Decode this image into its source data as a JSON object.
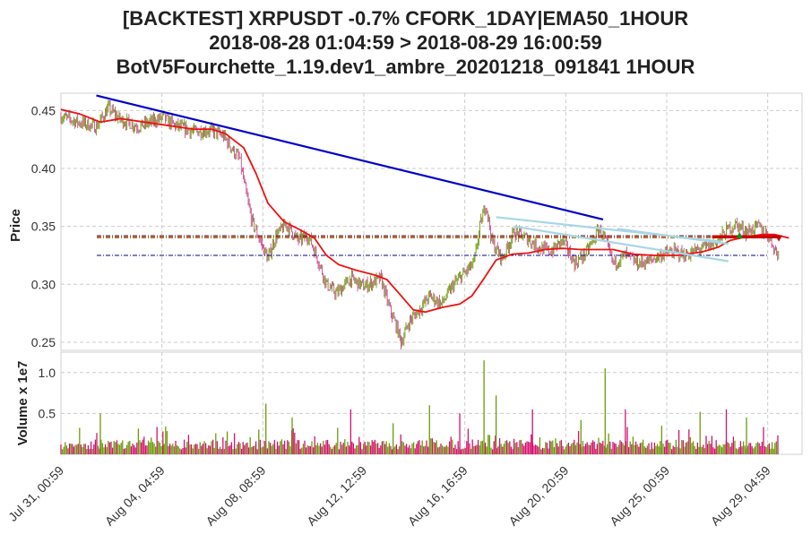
{
  "title": {
    "line1": "[BACKTEST] XRPUSDT -0.7% CFORK_1DAY|EMA50_1HOUR",
    "line2": "2018-08-28 01:04:59 > 2018-08-29 16:00:59",
    "line3": "BotV5Fourchette_1.19.dev1_ambre_20201218_091841 1HOUR"
  },
  "colors": {
    "candle": "#c84a8a",
    "ema": "#ee1111",
    "trend": "#0000cc",
    "channel": "#a9d6e5",
    "volume_up": "#6b9a08",
    "volume_down": "#d5126e",
    "level_dark": "#3b3b3b",
    "level_olive": "#8d8d1c",
    "level_red": "#cc0000",
    "level_blue": "#00008b",
    "grid": "#cccccc"
  },
  "chart_data": [
    {
      "type": "line",
      "panel": "price",
      "ylabel": "Price",
      "ylim": [
        0.243,
        0.465
      ],
      "yticks": [
        0.25,
        0.3,
        0.35,
        0.4,
        0.45
      ],
      "ytick_labels": [
        "0.25",
        "0.30",
        "0.35",
        "0.40",
        "0.45"
      ],
      "x_start": "2018-07-31 00:59",
      "x_end": "2018-08-30 15:00",
      "xticks": [
        "2018-07-31 00:59",
        "2018-08-04 04:59",
        "2018-08-08 08:59",
        "2018-08-12 12:59",
        "2018-08-16 16:59",
        "2018-08-20 20:59",
        "2018-08-25 00:59",
        "2018-08-29 04:59"
      ],
      "xtick_labels": [
        "Jul 31, 00:59",
        "Aug 04, 04:59",
        "Aug 08, 08:59",
        "Aug 12, 12:59",
        "Aug 16, 16:59",
        "Aug 20, 20:59",
        "Aug 25, 00:59",
        "Aug 29, 04:59"
      ],
      "grid": true,
      "series": [
        {
          "kind": "close",
          "points": [
            [
              "2018-07-31 00:59",
              0.445
            ],
            [
              "2018-07-31 18:00",
              0.44
            ],
            [
              "2018-08-01 12:00",
              0.436
            ],
            [
              "2018-08-02 00:00",
              0.452
            ],
            [
              "2018-08-02 12:00",
              0.442
            ],
            [
              "2018-08-03 06:00",
              0.436
            ],
            [
              "2018-08-03 18:00",
              0.44
            ],
            [
              "2018-08-04 06:00",
              0.444
            ],
            [
              "2018-08-04 18:00",
              0.437
            ],
            [
              "2018-08-05 12:00",
              0.432
            ],
            [
              "2018-08-06 06:00",
              0.433
            ],
            [
              "2018-08-06 18:00",
              0.428
            ],
            [
              "2018-08-07 04:00",
              0.415
            ],
            [
              "2018-08-07 10:00",
              0.408
            ],
            [
              "2018-08-07 16:00",
              0.38
            ],
            [
              "2018-08-07 22:00",
              0.355
            ],
            [
              "2018-08-08 06:00",
              0.338
            ],
            [
              "2018-08-08 14:00",
              0.322
            ],
            [
              "2018-08-08 22:00",
              0.342
            ],
            [
              "2018-08-09 08:00",
              0.352
            ],
            [
              "2018-08-09 20:00",
              0.338
            ],
            [
              "2018-08-10 06:00",
              0.342
            ],
            [
              "2018-08-10 14:00",
              0.325
            ],
            [
              "2018-08-11 00:00",
              0.3
            ],
            [
              "2018-08-11 10:00",
              0.292
            ],
            [
              "2018-08-12 00:00",
              0.305
            ],
            [
              "2018-08-12 12:59",
              0.298
            ],
            [
              "2018-08-13 06:00",
              0.305
            ],
            [
              "2018-08-13 14:00",
              0.28
            ],
            [
              "2018-08-13 22:00",
              0.262
            ],
            [
              "2018-08-14 02:00",
              0.25
            ],
            [
              "2018-08-14 10:00",
              0.268
            ],
            [
              "2018-08-14 20:00",
              0.278
            ],
            [
              "2018-08-15 06:00",
              0.29
            ],
            [
              "2018-08-15 18:00",
              0.283
            ],
            [
              "2018-08-16 06:00",
              0.3
            ],
            [
              "2018-08-16 16:59",
              0.31
            ],
            [
              "2018-08-17 02:00",
              0.318
            ],
            [
              "2018-08-17 08:00",
              0.35
            ],
            [
              "2018-08-17 14:00",
              0.37
            ],
            [
              "2018-08-17 20:00",
              0.336
            ],
            [
              "2018-08-18 06:00",
              0.322
            ],
            [
              "2018-08-18 18:00",
              0.345
            ],
            [
              "2018-08-19 06:00",
              0.34
            ],
            [
              "2018-08-19 18:00",
              0.332
            ],
            [
              "2018-08-20 06:00",
              0.328
            ],
            [
              "2018-08-20 18:00",
              0.338
            ],
            [
              "2018-08-21 06:00",
              0.318
            ],
            [
              "2018-08-21 18:00",
              0.328
            ],
            [
              "2018-08-22 06:00",
              0.348
            ],
            [
              "2018-08-22 12:00",
              0.338
            ],
            [
              "2018-08-22 20:00",
              0.318
            ],
            [
              "2018-08-23 08:00",
              0.325
            ],
            [
              "2018-08-23 20:00",
              0.318
            ],
            [
              "2018-08-24 08:00",
              0.32
            ],
            [
              "2018-08-24 20:00",
              0.326
            ],
            [
              "2018-08-25 08:00",
              0.328
            ],
            [
              "2018-08-25 20:00",
              0.325
            ],
            [
              "2018-08-26 08:00",
              0.33
            ],
            [
              "2018-08-26 20:00",
              0.333
            ],
            [
              "2018-08-27 06:00",
              0.34
            ],
            [
              "2018-08-27 14:00",
              0.348
            ],
            [
              "2018-08-27 22:00",
              0.352
            ],
            [
              "2018-08-28 08:00",
              0.345
            ],
            [
              "2018-08-28 20:00",
              0.35
            ],
            [
              "2018-08-29 06:00",
              0.342
            ],
            [
              "2018-08-29 12:00",
              0.33
            ],
            [
              "2018-08-29 16:00",
              0.325
            ]
          ]
        },
        {
          "kind": "ema",
          "points": [
            [
              "2018-07-31 00:59",
              0.451
            ],
            [
              "2018-07-31 20:00",
              0.447
            ],
            [
              "2018-08-01 16:00",
              0.44
            ],
            [
              "2018-08-02 12:00",
              0.443
            ],
            [
              "2018-08-03 12:00",
              0.44
            ],
            [
              "2018-08-04 12:00",
              0.437
            ],
            [
              "2018-08-05 12:00",
              0.434
            ],
            [
              "2018-08-06 06:00",
              0.434
            ],
            [
              "2018-08-06 20:00",
              0.43
            ],
            [
              "2018-08-07 14:00",
              0.418
            ],
            [
              "2018-08-08 02:00",
              0.396
            ],
            [
              "2018-08-08 14:00",
              0.37
            ],
            [
              "2018-08-09 06:00",
              0.354
            ],
            [
              "2018-08-09 22:00",
              0.347
            ],
            [
              "2018-08-10 12:00",
              0.34
            ],
            [
              "2018-08-11 00:00",
              0.325
            ],
            [
              "2018-08-11 12:00",
              0.317
            ],
            [
              "2018-08-12 06:00",
              0.312
            ],
            [
              "2018-08-13 00:00",
              0.308
            ],
            [
              "2018-08-13 12:00",
              0.304
            ],
            [
              "2018-08-14 00:00",
              0.292
            ],
            [
              "2018-08-14 14:00",
              0.278
            ],
            [
              "2018-08-15 02:00",
              0.276
            ],
            [
              "2018-08-15 18:00",
              0.28
            ],
            [
              "2018-08-16 12:00",
              0.283
            ],
            [
              "2018-08-17 00:00",
              0.29
            ],
            [
              "2018-08-17 12:00",
              0.305
            ],
            [
              "2018-08-18 00:00",
              0.321
            ],
            [
              "2018-08-18 16:00",
              0.326
            ],
            [
              "2018-08-19 08:00",
              0.327
            ],
            [
              "2018-08-20 00:00",
              0.33
            ],
            [
              "2018-08-20 18:00",
              0.331
            ],
            [
              "2018-08-21 12:00",
              0.33
            ],
            [
              "2018-08-22 04:00",
              0.33
            ],
            [
              "2018-08-22 20:00",
              0.33
            ],
            [
              "2018-08-23 16:00",
              0.326
            ],
            [
              "2018-08-24 12:00",
              0.325
            ],
            [
              "2018-08-25 12:00",
              0.325
            ],
            [
              "2018-08-26 12:00",
              0.328
            ],
            [
              "2018-08-27 04:00",
              0.332
            ],
            [
              "2018-08-27 16:00",
              0.338
            ],
            [
              "2018-08-28 08:00",
              0.341
            ],
            [
              "2018-08-29 00:00",
              0.343
            ],
            [
              "2018-08-29 12:00",
              0.343
            ],
            [
              "2018-08-30 02:00",
              0.34
            ]
          ]
        },
        {
          "kind": "trend",
          "points": [
            [
              "2018-08-01 12:00",
              0.463
            ],
            [
              "2018-08-22 10:00",
              0.356
            ]
          ]
        },
        {
          "kind": "channel",
          "points": [
            [
              "2018-08-18 00:00",
              0.358
            ],
            [
              "2018-08-27 06:00",
              0.337
            ]
          ]
        },
        {
          "kind": "channel",
          "points": [
            [
              "2018-08-18 18:00",
              0.35
            ],
            [
              "2018-08-27 14:00",
              0.32
            ]
          ]
        },
        {
          "kind": "channel",
          "points": [
            [
              "2018-08-23 00:00",
              0.348
            ],
            [
              "2018-08-27 14:00",
              0.335
            ]
          ]
        },
        {
          "kind": "position",
          "points": [
            [
              "2018-08-26 22:00",
              0.341
            ],
            [
              "2018-08-29 16:00",
              0.341
            ]
          ]
        }
      ],
      "hlines": [
        {
          "kind": "dark",
          "value": 0.342
        },
        {
          "kind": "olive",
          "value": 0.34
        },
        {
          "kind": "red",
          "value": 0.341
        },
        {
          "kind": "blue",
          "value": 0.325
        }
      ],
      "markers": [
        {
          "kind": "buy",
          "x": "2018-08-28 01:04",
          "y": 0.342
        },
        {
          "kind": "sell",
          "x": "2018-08-29 16:00",
          "y": 0.34
        }
      ]
    },
    {
      "type": "bar",
      "panel": "volume",
      "ylabel": "Volume x 1e7",
      "ylim": [
        0,
        1.25
      ],
      "yticks": [
        0.5,
        1.0
      ],
      "ytick_labels": [
        "0.5",
        "1.0"
      ],
      "spikes": [
        [
          "2018-08-01 16:00",
          0.5
        ],
        [
          "2018-08-04 06:00",
          0.28
        ],
        [
          "2018-08-08 12:00",
          0.62
        ],
        [
          "2018-08-09 14:00",
          0.45
        ],
        [
          "2018-08-12 00:00",
          0.55
        ],
        [
          "2018-08-13 18:00",
          0.38
        ],
        [
          "2018-08-15 06:00",
          0.6
        ],
        [
          "2018-08-16 12:00",
          0.5
        ],
        [
          "2018-08-17 12:00",
          1.15
        ],
        [
          "2018-08-18 00:00",
          0.72
        ],
        [
          "2018-08-19 12:00",
          0.55
        ],
        [
          "2018-08-21 12:00",
          0.42
        ],
        [
          "2018-08-22 12:00",
          1.05
        ],
        [
          "2018-08-23 08:00",
          0.55
        ],
        [
          "2018-08-24 20:00",
          0.35
        ],
        [
          "2018-08-26 10:00",
          0.52
        ],
        [
          "2018-08-27 12:00",
          0.55
        ],
        [
          "2018-08-28 08:00",
          0.45
        ]
      ]
    }
  ]
}
